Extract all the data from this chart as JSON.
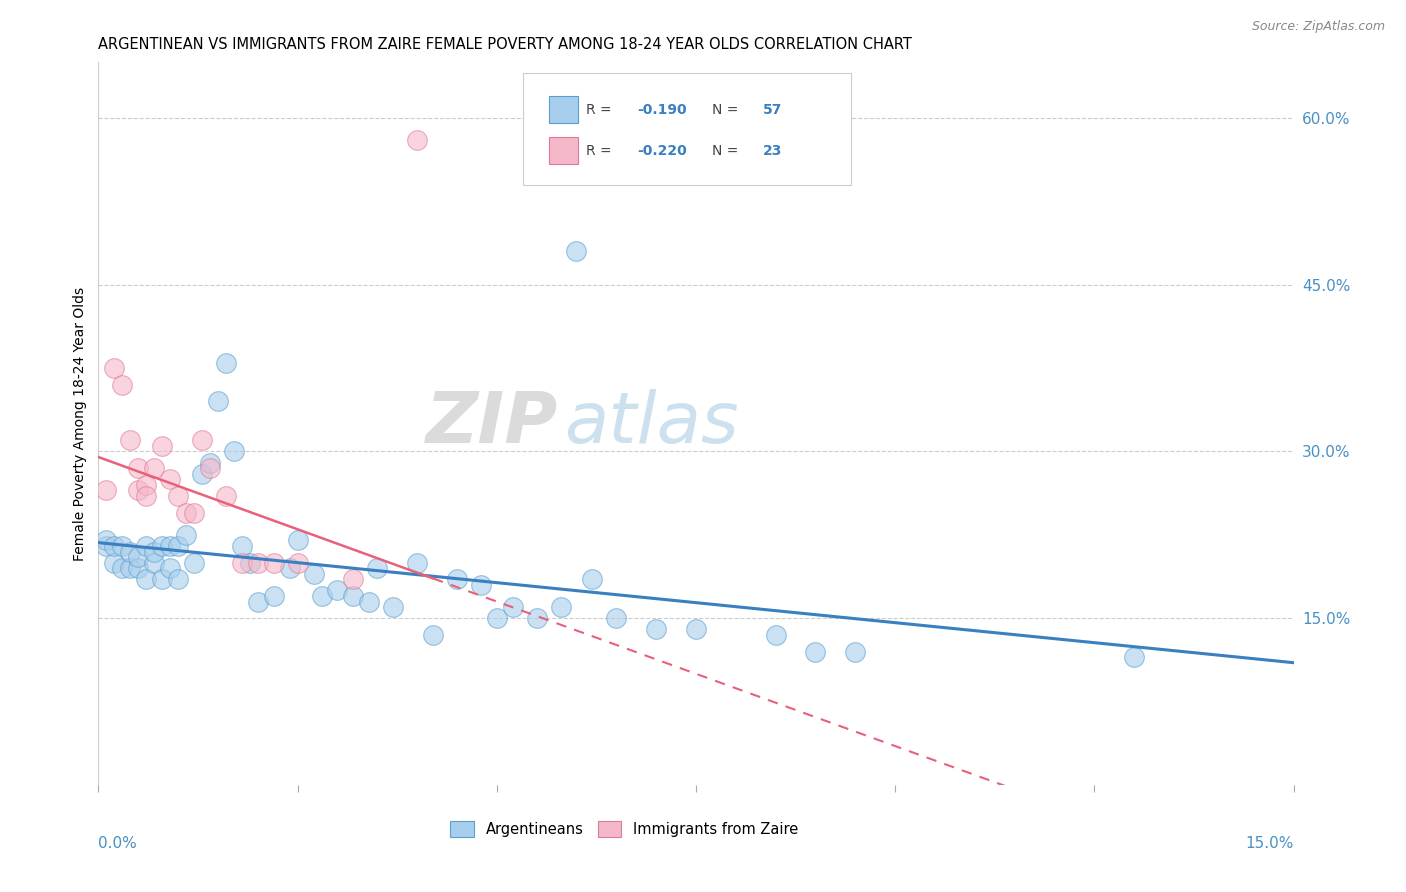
{
  "title": "ARGENTINEAN VS IMMIGRANTS FROM ZAIRE FEMALE POVERTY AMONG 18-24 YEAR OLDS CORRELATION CHART",
  "source": "Source: ZipAtlas.com",
  "ylabel": "Female Poverty Among 18-24 Year Olds",
  "ylabel_ticks": [
    0.0,
    0.15,
    0.3,
    0.45,
    0.6
  ],
  "ylabel_tick_labels": [
    "",
    "15.0%",
    "30.0%",
    "45.0%",
    "60.0%"
  ],
  "xlim": [
    0.0,
    0.15
  ],
  "ylim": [
    0.0,
    0.65
  ],
  "argentineans_fill": "#A8CEED",
  "argentineans_edge": "#5B9FCC",
  "zaire_fill": "#F5B8C8",
  "zaire_edge": "#E07898",
  "blue_line_color": "#3A7FBF",
  "pink_line_color": "#E8607A",
  "arg_x": [
    0.001,
    0.001,
    0.002,
    0.002,
    0.003,
    0.003,
    0.004,
    0.004,
    0.005,
    0.005,
    0.006,
    0.006,
    0.007,
    0.007,
    0.008,
    0.008,
    0.009,
    0.009,
    0.01,
    0.01,
    0.011,
    0.012,
    0.013,
    0.014,
    0.015,
    0.016,
    0.017,
    0.018,
    0.019,
    0.02,
    0.022,
    0.024,
    0.025,
    0.027,
    0.028,
    0.03,
    0.032,
    0.034,
    0.035,
    0.037,
    0.04,
    0.042,
    0.045,
    0.048,
    0.05,
    0.052,
    0.055,
    0.058,
    0.06,
    0.062,
    0.065,
    0.07,
    0.075,
    0.085,
    0.09,
    0.095,
    0.13
  ],
  "arg_y": [
    0.215,
    0.22,
    0.2,
    0.215,
    0.195,
    0.215,
    0.195,
    0.21,
    0.195,
    0.205,
    0.215,
    0.185,
    0.2,
    0.21,
    0.185,
    0.215,
    0.195,
    0.215,
    0.185,
    0.215,
    0.225,
    0.2,
    0.28,
    0.29,
    0.345,
    0.38,
    0.3,
    0.215,
    0.2,
    0.165,
    0.17,
    0.195,
    0.22,
    0.19,
    0.17,
    0.175,
    0.17,
    0.165,
    0.195,
    0.16,
    0.2,
    0.135,
    0.185,
    0.18,
    0.15,
    0.16,
    0.15,
    0.16,
    0.48,
    0.185,
    0.15,
    0.14,
    0.14,
    0.135,
    0.12,
    0.12,
    0.115
  ],
  "zaire_x": [
    0.001,
    0.002,
    0.003,
    0.004,
    0.005,
    0.005,
    0.006,
    0.006,
    0.007,
    0.008,
    0.009,
    0.01,
    0.011,
    0.012,
    0.013,
    0.014,
    0.016,
    0.018,
    0.02,
    0.022,
    0.025,
    0.032,
    0.04
  ],
  "zaire_y": [
    0.265,
    0.375,
    0.36,
    0.31,
    0.265,
    0.285,
    0.27,
    0.26,
    0.285,
    0.305,
    0.275,
    0.26,
    0.245,
    0.245,
    0.31,
    0.285,
    0.26,
    0.2,
    0.2,
    0.2,
    0.2,
    0.185,
    0.58
  ],
  "blue_intercept": 0.218,
  "blue_slope": -0.72,
  "pink_intercept": 0.295,
  "pink_slope": -2.6
}
